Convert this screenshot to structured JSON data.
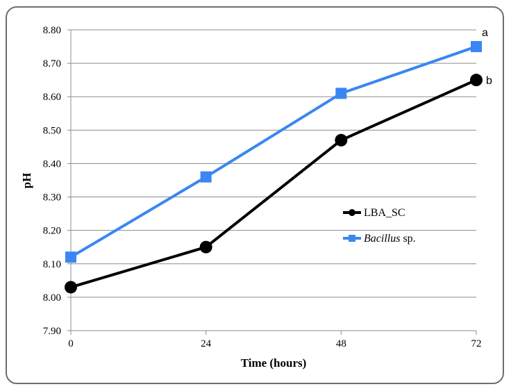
{
  "chart_data": {
    "type": "line",
    "x": [
      0,
      24,
      48,
      72
    ],
    "x_tick_labels": [
      "0",
      "24",
      "48",
      "72"
    ],
    "xlabel": "Time (hours)",
    "ylabel": "pH",
    "ylim": [
      7.9,
      8.8
    ],
    "y_tick_labels": [
      "7.90",
      "8.00",
      "8.10",
      "8.20",
      "8.30",
      "8.40",
      "8.50",
      "8.60",
      "8.70",
      "8.80"
    ],
    "grid": "horizontal",
    "legend_placement": "right",
    "series": [
      {
        "name": "Bacillus sp.",
        "name_parts": [
          {
            "text": "Bacillus",
            "italic": true
          },
          {
            "text": " sp.",
            "italic": false
          }
        ],
        "color": "#3a86f2",
        "marker": "square",
        "values": [
          8.12,
          8.36,
          8.61,
          8.75
        ],
        "end_annotation": "a"
      },
      {
        "name": "LBA_SC",
        "name_parts": [
          {
            "text": "LBA_SC",
            "italic": false
          }
        ],
        "color": "#000000",
        "marker": "circle",
        "values": [
          8.03,
          8.15,
          8.47,
          8.65
        ],
        "end_annotation": "b"
      }
    ],
    "legend_order": [
      "LBA_SC",
      "Bacillus sp."
    ]
  }
}
